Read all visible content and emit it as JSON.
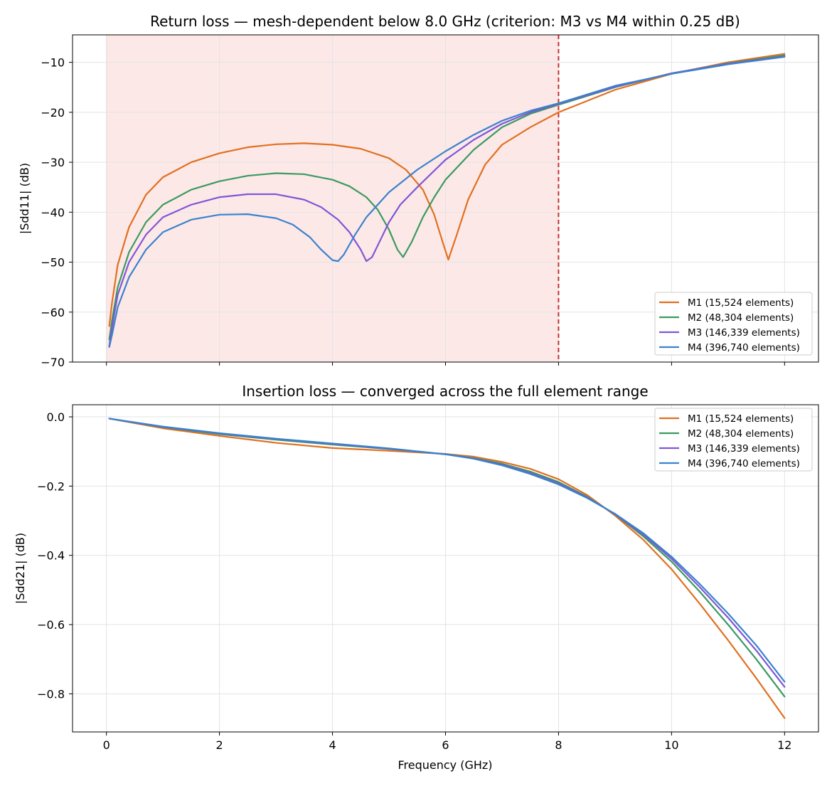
{
  "colors": {
    "M1": "#e07020",
    "M2": "#3a9a60",
    "M3": "#7e57d6",
    "M4": "#3a82cc",
    "shade": "#fde8e8",
    "criterion_line": "#c83030",
    "grid": "#e3e3e3"
  },
  "chart_data": [
    {
      "type": "line",
      "title": "Return loss — mesh-dependent below 8.0 GHz (criterion: M3 vs M4 within 0.25 dB)",
      "xlabel": "",
      "ylabel": "|Sdd11| (dB)",
      "xlim": [
        -0.6,
        12.6
      ],
      "ylim": [
        -70,
        -4.5
      ],
      "xticks": [
        0,
        2,
        4,
        6,
        8,
        10,
        12
      ],
      "xtick_labels_visible": false,
      "yticks": [
        -70,
        -60,
        -50,
        -40,
        -30,
        -20,
        -10
      ],
      "ytick_labels": [
        "−70",
        "−60",
        "−50",
        "−40",
        "−30",
        "−20",
        "−10"
      ],
      "grid": true,
      "legend_position": "lower-right",
      "shaded_region": {
        "x_start": 0,
        "x_end": 8.0
      },
      "vline": {
        "x": 8.0,
        "style": "dashed"
      },
      "series": [
        {
          "name": "M1 (15,524 elements)",
          "color_key": "M1",
          "x": [
            0.05,
            0.1,
            0.2,
            0.4,
            0.7,
            1.0,
            1.5,
            2.0,
            2.5,
            3.0,
            3.5,
            4.0,
            4.5,
            5.0,
            5.3,
            5.6,
            5.8,
            5.95,
            6.05,
            6.2,
            6.4,
            6.7,
            7.0,
            7.5,
            8.0,
            9.0,
            10.0,
            11.0,
            12.0
          ],
          "y": [
            -62.8,
            -58.0,
            -50.5,
            -43.0,
            -36.5,
            -33.0,
            -30.0,
            -28.2,
            -27.0,
            -26.4,
            -26.2,
            -26.5,
            -27.3,
            -29.2,
            -31.5,
            -35.5,
            -40.5,
            -46.0,
            -49.5,
            -44.5,
            -37.5,
            -30.5,
            -26.5,
            -23.0,
            -20.0,
            -15.5,
            -12.3,
            -10.0,
            -8.3
          ]
        },
        {
          "name": "M2 (48,304 elements)",
          "color_key": "M2",
          "x": [
            0.05,
            0.1,
            0.2,
            0.4,
            0.7,
            1.0,
            1.5,
            2.0,
            2.5,
            3.0,
            3.5,
            4.0,
            4.3,
            4.6,
            4.8,
            5.0,
            5.15,
            5.25,
            5.4,
            5.6,
            5.8,
            6.0,
            6.5,
            7.0,
            7.5,
            8.0,
            9.0,
            10.0,
            11.0,
            12.0
          ],
          "y": [
            -65.5,
            -61.5,
            -55.0,
            -48.0,
            -42.0,
            -38.5,
            -35.5,
            -33.8,
            -32.7,
            -32.2,
            -32.4,
            -33.5,
            -34.8,
            -37.0,
            -39.5,
            -43.5,
            -47.5,
            -49.0,
            -46.0,
            -41.0,
            -37.0,
            -33.5,
            -27.5,
            -23.0,
            -20.3,
            -18.5,
            -15.0,
            -12.2,
            -10.2,
            -8.6
          ]
        },
        {
          "name": "M3 (146,339 elements)",
          "color_key": "M3",
          "x": [
            0.05,
            0.1,
            0.2,
            0.4,
            0.7,
            1.0,
            1.5,
            2.0,
            2.5,
            3.0,
            3.5,
            3.8,
            4.1,
            4.3,
            4.5,
            4.6,
            4.7,
            4.85,
            5.0,
            5.2,
            5.5,
            6.0,
            6.5,
            7.0,
            7.5,
            8.0,
            9.0,
            10.0,
            11.0,
            12.0
          ],
          "y": [
            -66.8,
            -63.0,
            -56.5,
            -50.0,
            -44.5,
            -41.0,
            -38.5,
            -37.0,
            -36.4,
            -36.4,
            -37.5,
            -39.0,
            -41.5,
            -44.0,
            -47.5,
            -49.8,
            -49.0,
            -45.5,
            -42.0,
            -38.5,
            -35.0,
            -29.5,
            -25.5,
            -22.3,
            -20.0,
            -18.3,
            -14.9,
            -12.2,
            -10.3,
            -8.8
          ]
        },
        {
          "name": "M4 (396,740 elements)",
          "color_key": "M4",
          "x": [
            0.05,
            0.1,
            0.2,
            0.4,
            0.7,
            1.0,
            1.5,
            2.0,
            2.5,
            3.0,
            3.3,
            3.6,
            3.8,
            4.0,
            4.1,
            4.2,
            4.4,
            4.6,
            5.0,
            5.5,
            6.0,
            6.5,
            7.0,
            7.5,
            8.0,
            9.0,
            10.0,
            11.0,
            12.0
          ],
          "y": [
            -67.0,
            -64.5,
            -59.0,
            -53.0,
            -47.5,
            -44.0,
            -41.5,
            -40.5,
            -40.4,
            -41.2,
            -42.5,
            -45.0,
            -47.5,
            -49.6,
            -49.8,
            -48.5,
            -44.5,
            -41.0,
            -36.0,
            -31.5,
            -27.8,
            -24.5,
            -21.7,
            -19.7,
            -18.2,
            -14.7,
            -12.3,
            -10.4,
            -8.9
          ]
        }
      ],
      "legend": [
        "M1 (15,524 elements)",
        "M2 (48,304 elements)",
        "M3 (146,339 elements)",
        "M4 (396,740 elements)"
      ]
    },
    {
      "type": "line",
      "title": "Insertion loss — converged across the full element range",
      "xlabel": "Frequency (GHz)",
      "ylabel": "|Sdd21| (dB)",
      "xlim": [
        -0.6,
        12.6
      ],
      "ylim": [
        -0.91,
        0.035
      ],
      "xticks": [
        0,
        2,
        4,
        6,
        8,
        10,
        12
      ],
      "xtick_labels": [
        "0",
        "2",
        "4",
        "6",
        "8",
        "10",
        "12"
      ],
      "yticks": [
        0.0,
        -0.2,
        -0.4,
        -0.6,
        -0.8
      ],
      "ytick_labels": [
        "0.0",
        "−0.2",
        "−0.4",
        "−0.6",
        "−0.8"
      ],
      "grid": true,
      "legend_position": "top-right",
      "series": [
        {
          "name": "M1 (15,524 elements)",
          "color_key": "M1",
          "x": [
            0.05,
            1,
            2,
            3,
            4,
            5,
            6,
            6.5,
            7,
            7.5,
            8,
            8.5,
            9,
            9.5,
            10,
            10.5,
            11,
            11.5,
            12
          ],
          "y": [
            -0.005,
            -0.033,
            -0.055,
            -0.075,
            -0.09,
            -0.098,
            -0.107,
            -0.115,
            -0.13,
            -0.15,
            -0.18,
            -0.225,
            -0.285,
            -0.355,
            -0.44,
            -0.54,
            -0.645,
            -0.755,
            -0.87
          ]
        },
        {
          "name": "M2 (48,304 elements)",
          "color_key": "M2",
          "x": [
            0.05,
            1,
            2,
            3,
            4,
            5,
            6,
            6.5,
            7,
            7.5,
            8,
            8.5,
            9,
            9.5,
            10,
            10.5,
            11,
            11.5,
            12
          ],
          "y": [
            -0.005,
            -0.03,
            -0.05,
            -0.066,
            -0.08,
            -0.093,
            -0.108,
            -0.119,
            -0.135,
            -0.158,
            -0.188,
            -0.23,
            -0.282,
            -0.345,
            -0.418,
            -0.505,
            -0.6,
            -0.7,
            -0.808
          ]
        },
        {
          "name": "M3 (146,339 elements)",
          "color_key": "M3",
          "x": [
            0.05,
            1,
            2,
            3,
            4,
            5,
            6,
            6.5,
            7,
            7.5,
            8,
            8.5,
            9,
            9.5,
            10,
            10.5,
            11,
            11.5,
            12
          ],
          "y": [
            -0.005,
            -0.029,
            -0.048,
            -0.064,
            -0.078,
            -0.092,
            -0.108,
            -0.12,
            -0.138,
            -0.162,
            -0.192,
            -0.232,
            -0.281,
            -0.34,
            -0.41,
            -0.492,
            -0.58,
            -0.675,
            -0.78
          ]
        },
        {
          "name": "M4 (396,740 elements)",
          "color_key": "M4",
          "x": [
            0.05,
            1,
            2,
            3,
            4,
            5,
            6,
            6.5,
            7,
            7.5,
            8,
            8.5,
            9,
            9.5,
            10,
            10.5,
            11,
            11.5,
            12
          ],
          "y": [
            -0.005,
            -0.028,
            -0.047,
            -0.063,
            -0.077,
            -0.091,
            -0.108,
            -0.121,
            -0.14,
            -0.165,
            -0.195,
            -0.234,
            -0.28,
            -0.336,
            -0.404,
            -0.483,
            -0.568,
            -0.66,
            -0.765
          ]
        }
      ],
      "legend": [
        "M1 (15,524 elements)",
        "M2 (48,304 elements)",
        "M3 (146,339 elements)",
        "M4 (396,740 elements)"
      ]
    }
  ]
}
